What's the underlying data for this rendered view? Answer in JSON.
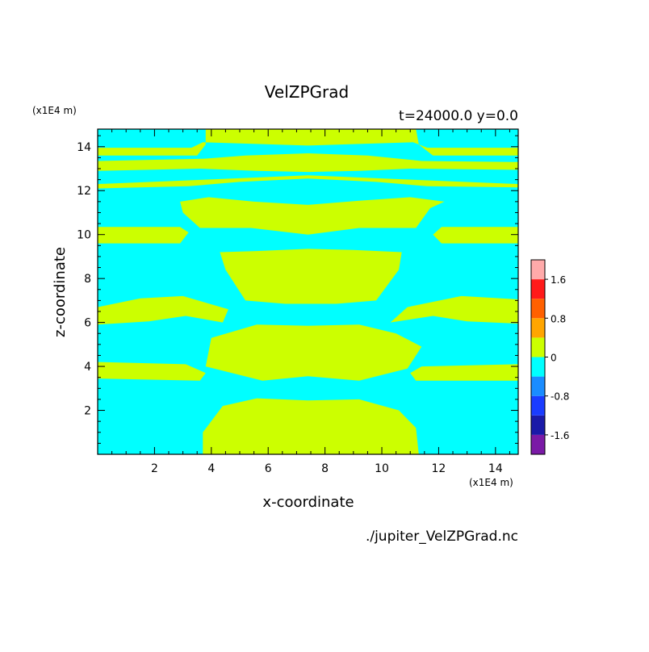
{
  "chart_data": {
    "type": "heatmap",
    "title": "VelZPGrad",
    "subtitle": "t=24000.0 y=0.0",
    "xlabel": "x-coordinate",
    "ylabel": "z-coordinate",
    "x_unit": "(x1E4 m)",
    "y_unit": "(x1E4 m)",
    "source_file": "./jupiter_VelZPGrad.nc",
    "xlim": [
      0,
      14.8
    ],
    "ylim": [
      0,
      14.8
    ],
    "x_ticks": [
      2,
      4,
      6,
      8,
      10,
      12,
      14
    ],
    "y_ticks": [
      2,
      4,
      6,
      8,
      10,
      12,
      14
    ],
    "colorbar": {
      "levels": [
        -2.0,
        -1.6,
        -1.2,
        -0.8,
        -0.4,
        0,
        0.4,
        0.8,
        1.2,
        1.6,
        2.0
      ],
      "colors": [
        "#7a1aa6",
        "#1a1aa8",
        "#1a3cff",
        "#1a8cff",
        "#00ffff",
        "#ccff00",
        "#ffa500",
        "#ff6000",
        "#ff1a1a",
        "#ffaaaa"
      ],
      "tick_labels": [
        "-1.6",
        "-0.8",
        "0",
        "0.8",
        "1.6"
      ],
      "tick_values": [
        -1.6,
        -0.8,
        0,
        0.8,
        1.6
      ]
    },
    "field_colors": {
      "negative": "#00ffff",
      "positive": "#ccff00"
    },
    "positive_regions": [
      {
        "poly": [
          [
            3.7,
            0
          ],
          [
            11.3,
            0
          ],
          [
            11.2,
            1.2
          ],
          [
            10.6,
            2.0
          ],
          [
            9.2,
            2.5
          ],
          [
            7.4,
            2.45
          ],
          [
            5.6,
            2.55
          ],
          [
            4.4,
            2.2
          ],
          [
            3.7,
            1.0
          ]
        ]
      },
      {
        "poly": [
          [
            0,
            3.45
          ],
          [
            3.6,
            3.35
          ],
          [
            3.8,
            3.7
          ],
          [
            3.1,
            4.1
          ],
          [
            0,
            4.2
          ]
        ]
      },
      {
        "poly": [
          [
            11.2,
            3.35
          ],
          [
            14.8,
            3.35
          ],
          [
            14.8,
            4.1
          ],
          [
            11.4,
            4.0
          ],
          [
            11.0,
            3.7
          ]
        ]
      },
      {
        "poly": [
          [
            3.8,
            4.0
          ],
          [
            5.8,
            3.35
          ],
          [
            7.4,
            3.55
          ],
          [
            9.2,
            3.35
          ],
          [
            10.9,
            3.9
          ],
          [
            11.4,
            4.9
          ],
          [
            10.5,
            5.5
          ],
          [
            9.2,
            5.9
          ],
          [
            7.4,
            5.85
          ],
          [
            5.6,
            5.9
          ],
          [
            4.0,
            5.3
          ]
        ]
      },
      {
        "poly": [
          [
            0,
            5.9
          ],
          [
            1.8,
            6.05
          ],
          [
            3.1,
            6.3
          ],
          [
            4.4,
            6.0
          ],
          [
            4.6,
            6.6
          ],
          [
            3.0,
            7.2
          ],
          [
            1.5,
            7.1
          ],
          [
            0,
            6.7
          ]
        ]
      },
      {
        "poly": [
          [
            10.3,
            6.0
          ],
          [
            11.8,
            6.3
          ],
          [
            13.0,
            6.05
          ],
          [
            14.8,
            5.95
          ],
          [
            14.8,
            7.05
          ],
          [
            12.8,
            7.2
          ],
          [
            10.9,
            6.7
          ]
        ]
      },
      {
        "poly": [
          [
            4.3,
            9.2
          ],
          [
            4.5,
            8.4
          ],
          [
            5.2,
            7.0
          ],
          [
            6.6,
            6.85
          ],
          [
            7.4,
            6.85
          ],
          [
            8.4,
            6.85
          ],
          [
            9.8,
            7.0
          ],
          [
            10.6,
            8.4
          ],
          [
            10.7,
            9.2
          ],
          [
            9.0,
            9.3
          ],
          [
            7.4,
            9.35
          ],
          [
            5.6,
            9.25
          ]
        ]
      },
      {
        "poly": [
          [
            0,
            9.6
          ],
          [
            2.9,
            9.6
          ],
          [
            3.2,
            10.1
          ],
          [
            2.9,
            10.35
          ],
          [
            0,
            10.35
          ]
        ]
      },
      {
        "poly": [
          [
            12.1,
            9.6
          ],
          [
            14.8,
            9.6
          ],
          [
            14.8,
            10.35
          ],
          [
            12.1,
            10.35
          ],
          [
            11.8,
            10.0
          ]
        ]
      },
      {
        "poly": [
          [
            2.9,
            11.5
          ],
          [
            3.9,
            11.7
          ],
          [
            5.5,
            11.5
          ],
          [
            7.4,
            11.35
          ],
          [
            9.3,
            11.55
          ],
          [
            11.0,
            11.7
          ],
          [
            12.2,
            11.5
          ],
          [
            11.7,
            11.2
          ],
          [
            11.2,
            10.3
          ],
          [
            9.2,
            10.3
          ],
          [
            7.4,
            10.0
          ],
          [
            5.4,
            10.3
          ],
          [
            3.6,
            10.3
          ],
          [
            3.0,
            11.0
          ]
        ]
      },
      {
        "poly": [
          [
            0,
            12.1
          ],
          [
            3.2,
            12.2
          ],
          [
            5.0,
            12.4
          ],
          [
            7.4,
            12.55
          ],
          [
            9.8,
            12.4
          ],
          [
            11.6,
            12.2
          ],
          [
            14.8,
            12.15
          ],
          [
            14.8,
            12.3
          ],
          [
            11.0,
            12.5
          ],
          [
            7.4,
            12.7
          ],
          [
            3.8,
            12.5
          ],
          [
            0,
            12.3
          ]
        ]
      },
      {
        "poly": [
          [
            0,
            12.9
          ],
          [
            3.6,
            13.0
          ],
          [
            5.6,
            12.9
          ],
          [
            7.4,
            12.85
          ],
          [
            9.2,
            12.9
          ],
          [
            11.0,
            13.0
          ],
          [
            14.8,
            12.95
          ],
          [
            14.8,
            13.3
          ],
          [
            11.4,
            13.35
          ],
          [
            9.5,
            13.6
          ],
          [
            7.4,
            13.7
          ],
          [
            5.2,
            13.6
          ],
          [
            3.7,
            13.45
          ],
          [
            0,
            13.35
          ]
        ]
      },
      {
        "poly": [
          [
            0,
            13.6
          ],
          [
            3.5,
            13.6
          ],
          [
            3.8,
            14.1
          ],
          [
            3.8,
            14.8
          ],
          [
            11.2,
            14.8
          ],
          [
            11.3,
            14.1
          ],
          [
            11.8,
            13.6
          ],
          [
            14.8,
            13.6
          ],
          [
            14.8,
            13.95
          ],
          [
            11.6,
            13.95
          ],
          [
            11.1,
            14.2
          ],
          [
            7.4,
            14.05
          ],
          [
            3.7,
            14.2
          ],
          [
            3.3,
            13.95
          ],
          [
            0,
            13.95
          ]
        ]
      }
    ]
  }
}
